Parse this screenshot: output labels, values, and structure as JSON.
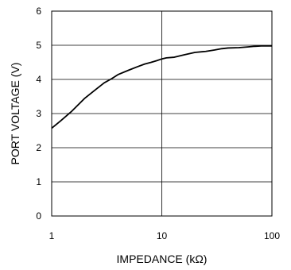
{
  "chart_data": {
    "type": "line",
    "title": "",
    "xlabel": "IMPEDANCE (kΩ)",
    "ylabel": "PORT VOLTAGE (V)",
    "x_scale": "log",
    "xlim": [
      1,
      100
    ],
    "ylim": [
      0,
      6
    ],
    "grid": true,
    "x_ticks": [
      1,
      10,
      100
    ],
    "x_tick_labels": [
      "1",
      "10",
      "100"
    ],
    "y_ticks": [
      0,
      1,
      2,
      3,
      4,
      5,
      6
    ],
    "y_tick_labels": [
      "0",
      "1",
      "2",
      "3",
      "4",
      "5",
      "6"
    ],
    "series": [
      {
        "x": [
          1,
          1.2,
          1.5,
          2,
          2.5,
          3,
          3.5,
          4,
          5,
          6,
          7,
          8,
          9,
          10,
          11,
          13,
          16,
          20,
          25,
          30,
          35,
          40,
          50,
          60,
          70,
          80,
          100
        ],
        "y": [
          2.57,
          2.78,
          3.05,
          3.45,
          3.7,
          3.9,
          4.02,
          4.14,
          4.27,
          4.37,
          4.45,
          4.5,
          4.55,
          4.6,
          4.63,
          4.65,
          4.72,
          4.79,
          4.82,
          4.86,
          4.9,
          4.92,
          4.93,
          4.95,
          4.97,
          4.98,
          4.98
        ]
      }
    ]
  }
}
